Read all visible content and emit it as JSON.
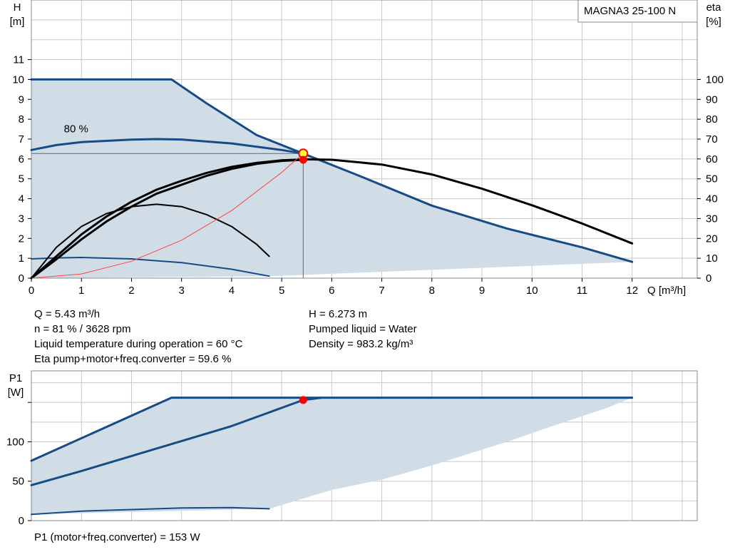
{
  "pump_model": "MAGNA3 25-100 N",
  "colors": {
    "envelope_fill": "#d0dce6",
    "curve_blue": "#174b85",
    "curve_black": "#000000",
    "system_curve": "#ff4444",
    "grid": "#c8c8c8",
    "operating_point": "#ff0000",
    "marker_yellow": "#ffff33"
  },
  "chart_data": [
    {
      "id": "head_chart",
      "type": "line",
      "ylabel_line1": "H",
      "ylabel_line2": "[m]",
      "y2label_line1": "eta",
      "y2label_line2": "[%]",
      "xlabel": "Q [m³/h]",
      "xlim": [
        0,
        13.3
      ],
      "ylim": [
        0,
        14
      ],
      "y2lim": [
        0,
        140
      ],
      "grid": true,
      "x_ticks": [
        "0",
        "1",
        "2",
        "3",
        "4",
        "5",
        "6",
        "7",
        "8",
        "9",
        "10",
        "11",
        "12"
      ],
      "y_ticks": [
        "0",
        "1",
        "2",
        "3",
        "4",
        "5",
        "6",
        "7",
        "8",
        "9",
        "10",
        "11"
      ],
      "y2_ticks": [
        "0",
        "10",
        "20",
        "30",
        "40",
        "50",
        "60",
        "70",
        "80",
        "90",
        "100"
      ],
      "envelope": [
        [
          0,
          10
        ],
        [
          2.8,
          10
        ],
        [
          4.5,
          7.2
        ],
        [
          5.43,
          6.27
        ],
        [
          6.5,
          5.2
        ],
        [
          8,
          3.65
        ],
        [
          9.5,
          2.5
        ],
        [
          11,
          1.55
        ],
        [
          12,
          0.82
        ],
        [
          4.8,
          0.1
        ],
        [
          0,
          0
        ]
      ],
      "series": [
        {
          "kind": "max_curve",
          "color": "#174b85",
          "width": 3,
          "points": [
            [
              0,
              10
            ],
            [
              2.8,
              10
            ],
            [
              3.5,
              8.8
            ],
            [
              4.5,
              7.2
            ],
            [
              5.43,
              6.27
            ],
            [
              6.5,
              5.2
            ],
            [
              8,
              3.65
            ],
            [
              9.5,
              2.5
            ],
            [
              11,
              1.55
            ],
            [
              12,
              0.82
            ]
          ]
        },
        {
          "kind": "constant_curve_80",
          "color": "#174b85",
          "width": 3,
          "points": [
            [
              0,
              6.45
            ],
            [
              0.5,
              6.7
            ],
            [
              1,
              6.85
            ],
            [
              2,
              6.97
            ],
            [
              2.5,
              7.0
            ],
            [
              3,
              6.98
            ],
            [
              4,
              6.78
            ],
            [
              5,
              6.45
            ],
            [
              5.43,
              6.27
            ]
          ]
        },
        {
          "kind": "min_curve",
          "color": "#174b85",
          "width": 2,
          "points": [
            [
              0,
              0.97
            ],
            [
              0.5,
              1.02
            ],
            [
              1,
              1.04
            ],
            [
              2,
              0.97
            ],
            [
              3,
              0.78
            ],
            [
              4,
              0.45
            ],
            [
              4.75,
              0.1
            ]
          ]
        },
        {
          "kind": "efficiency_max",
          "color": "#000000",
          "width": 3,
          "points": [
            [
              0,
              0
            ],
            [
              0.5,
              1.1
            ],
            [
              1,
              2.2
            ],
            [
              1.5,
              3.1
            ],
            [
              2,
              3.85
            ],
            [
              2.5,
              4.45
            ],
            [
              3,
              4.9
            ],
            [
              3.5,
              5.3
            ],
            [
              4,
              5.6
            ],
            [
              4.5,
              5.8
            ],
            [
              5,
              5.93
            ],
            [
              5.5,
              5.98
            ],
            [
              6,
              5.96
            ],
            [
              7,
              5.72
            ],
            [
              8,
              5.22
            ],
            [
              9,
              4.5
            ],
            [
              10,
              3.67
            ],
            [
              11,
              2.75
            ],
            [
              12,
              1.75
            ]
          ]
        },
        {
          "kind": "efficiency_op",
          "color": "#000000",
          "width": 3,
          "points": [
            [
              0,
              0
            ],
            [
              0.5,
              0.95
            ],
            [
              1,
              1.95
            ],
            [
              1.5,
              2.85
            ],
            [
              2,
              3.6
            ],
            [
              2.5,
              4.25
            ],
            [
              3,
              4.7
            ],
            [
              3.5,
              5.15
            ],
            [
              4,
              5.5
            ],
            [
              4.5,
              5.75
            ],
            [
              5,
              5.9
            ],
            [
              5.43,
              5.96
            ]
          ]
        },
        {
          "kind": "efficiency_min",
          "color": "#000000",
          "width": 2,
          "points": [
            [
              0,
              0
            ],
            [
              0.5,
              1.55
            ],
            [
              1,
              2.6
            ],
            [
              1.5,
              3.25
            ],
            [
              2,
              3.6
            ],
            [
              2.5,
              3.72
            ],
            [
              3,
              3.6
            ],
            [
              3.5,
              3.2
            ],
            [
              4,
              2.6
            ],
            [
              4.5,
              1.7
            ],
            [
              4.75,
              1.1
            ]
          ]
        },
        {
          "kind": "system_curve",
          "color": "#ff4444",
          "width": 1,
          "points": [
            [
              0,
              0
            ],
            [
              1,
              0.21
            ],
            [
              2,
              0.85
            ],
            [
              3,
              1.91
            ],
            [
              4,
              3.4
            ],
            [
              5,
              5.32
            ],
            [
              5.43,
              6.27
            ]
          ]
        }
      ],
      "operating_point": {
        "x": 5.43,
        "y": 6.273
      },
      "efficiency_point": {
        "x": 5.43,
        "y": 5.96
      },
      "annotation": "80 %",
      "annotation_pos": {
        "x": 0.65,
        "y": 7.35
      }
    },
    {
      "id": "power_chart",
      "type": "line",
      "ylabel_line1": "P1",
      "ylabel_line2": "[W]",
      "xlim": [
        0,
        13.3
      ],
      "ylim": [
        0,
        190
      ],
      "grid": true,
      "y_ticks": [
        "0",
        "50",
        "100"
      ],
      "y_ticks_values": [
        0,
        50,
        100
      ],
      "envelope": [
        [
          0,
          76
        ],
        [
          2.8,
          156
        ],
        [
          12,
          156
        ],
        [
          11.5,
          143
        ],
        [
          10.5,
          122
        ],
        [
          9.5,
          100
        ],
        [
          8,
          70
        ],
        [
          7,
          52
        ],
        [
          6,
          39
        ],
        [
          4.75,
          15
        ],
        [
          0,
          8
        ],
        [
          0,
          76
        ]
      ],
      "series": [
        {
          "kind": "max_power",
          "color": "#174b85",
          "width": 3,
          "points": [
            [
              0,
              76
            ],
            [
              2.8,
              156
            ],
            [
              12,
              156
            ]
          ]
        },
        {
          "kind": "constant_80_power",
          "color": "#174b85",
          "width": 3,
          "points": [
            [
              0,
              45
            ],
            [
              1,
              63
            ],
            [
              2,
              82
            ],
            [
              3,
              101
            ],
            [
              4,
              120
            ],
            [
              5,
              143
            ],
            [
              5.43,
              153
            ],
            [
              5.8,
              156
            ]
          ]
        },
        {
          "kind": "min_power",
          "color": "#174b85",
          "width": 2,
          "points": [
            [
              0,
              8
            ],
            [
              1,
              12
            ],
            [
              2,
              14
            ],
            [
              3,
              16
            ],
            [
              4,
              16.5
            ],
            [
              4.75,
              15
            ]
          ]
        }
      ],
      "operating_point": {
        "x": 5.43,
        "y": 153
      }
    }
  ],
  "info": {
    "q": "Q = 5.43 m³/h",
    "n": "n = 81 % / 3628 rpm",
    "temp": "Liquid temperature during operation = 60 °C",
    "eta": "Eta pump+motor+freq.converter = 59.6 %",
    "h": "H = 6.273 m",
    "liquid": "Pumped liquid = Water",
    "density": "Density = 983.2 kg/m³",
    "p1": "P1 (motor+freq.converter) = 153 W"
  }
}
